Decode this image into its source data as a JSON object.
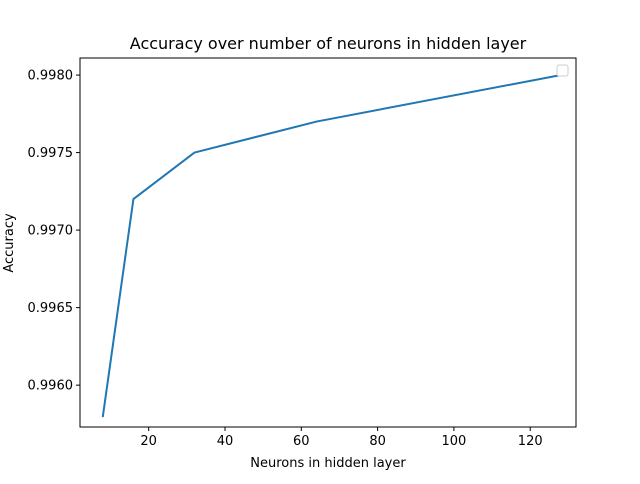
{
  "chart_data": {
    "type": "line",
    "title": "Accuracy over number of neurons in hidden layer",
    "xlabel": "Neurons in hidden layer",
    "ylabel": "Accuracy",
    "xlim": [
      2,
      132
    ],
    "ylim": [
      0.99573,
      0.99811
    ],
    "xticks": [
      20,
      40,
      60,
      80,
      100,
      120
    ],
    "xtick_labels": [
      "20",
      "40",
      "60",
      "80",
      "100",
      "120"
    ],
    "yticks": [
      0.996,
      0.9965,
      0.997,
      0.9975,
      0.998
    ],
    "ytick_labels": [
      "0.9960",
      "0.9965",
      "0.9970",
      "0.9975",
      "0.9980"
    ],
    "grid": false,
    "legend": {
      "placement": "upper-right",
      "entries": []
    },
    "series": [
      {
        "color": "#1f77b4",
        "x": [
          8,
          16,
          32,
          64,
          128
        ],
        "y": [
          0.9958,
          0.9972,
          0.9975,
          0.9977,
          0.998
        ]
      }
    ]
  }
}
